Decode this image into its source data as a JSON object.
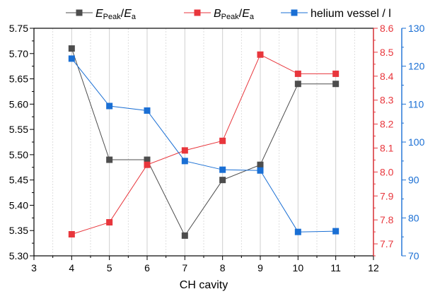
{
  "chart_data": {
    "type": "line",
    "xlabel": "CH cavity",
    "x_ticks": [
      "3",
      "4",
      "5",
      "6",
      "7",
      "8",
      "9",
      "10",
      "11",
      "12"
    ],
    "xlim": [
      3,
      12
    ],
    "axes": {
      "left": {
        "ylim": [
          5.3,
          5.75
        ],
        "ticks": [
          "5.30",
          "5.35",
          "5.40",
          "5.45",
          "5.50",
          "5.55",
          "5.60",
          "5.65",
          "5.70",
          "5.75"
        ],
        "color": "#000000"
      },
      "right1": {
        "ylim": [
          7.65,
          8.6
        ],
        "ticks": [
          "7.7",
          "7.8",
          "7.9",
          "8.0",
          "8.1",
          "8.2",
          "8.3",
          "8.4",
          "8.5",
          "8.6"
        ],
        "color": "#e8363c"
      },
      "right2": {
        "ylim": [
          70,
          130
        ],
        "ticks": [
          "70",
          "80",
          "90",
          "100",
          "110",
          "120",
          "130"
        ],
        "color": "#1a6fd4"
      }
    },
    "grid": "vertical-minor-dotted, vertical-major-solid-light",
    "legend_position": "top",
    "series": [
      {
        "legend_parts": [
          {
            "t": "E"
          },
          {
            "t": "Peak",
            "sub": true
          },
          {
            "t": "/E"
          },
          {
            "t": "a",
            "sub": true
          }
        ],
        "axis": "left",
        "color": "#4d4d4d",
        "x": [
          4,
          5,
          6,
          7,
          8,
          9,
          10,
          11
        ],
        "values": [
          5.71,
          5.49,
          5.49,
          5.34,
          5.45,
          5.48,
          5.64,
          5.64
        ]
      },
      {
        "legend_parts": [
          {
            "t": "B"
          },
          {
            "t": "Peak",
            "sub": true
          },
          {
            "t": "/E"
          },
          {
            "t": "a",
            "sub": true
          }
        ],
        "axis": "right1",
        "color": "#e8363c",
        "x": [
          4,
          5,
          6,
          7,
          8,
          9,
          10,
          11
        ],
        "values": [
          7.74,
          7.79,
          8.03,
          8.09,
          8.13,
          8.49,
          8.41,
          8.41
        ]
      },
      {
        "legend_parts": [
          {
            "t": "helium vessel / l"
          }
        ],
        "axis": "right2",
        "color": "#1a6fd4",
        "x": [
          4,
          5,
          6,
          7,
          8,
          9,
          10,
          11
        ],
        "values": [
          122,
          109.5,
          108.3,
          95,
          92.7,
          92.5,
          76.3,
          76.5
        ]
      }
    ]
  }
}
